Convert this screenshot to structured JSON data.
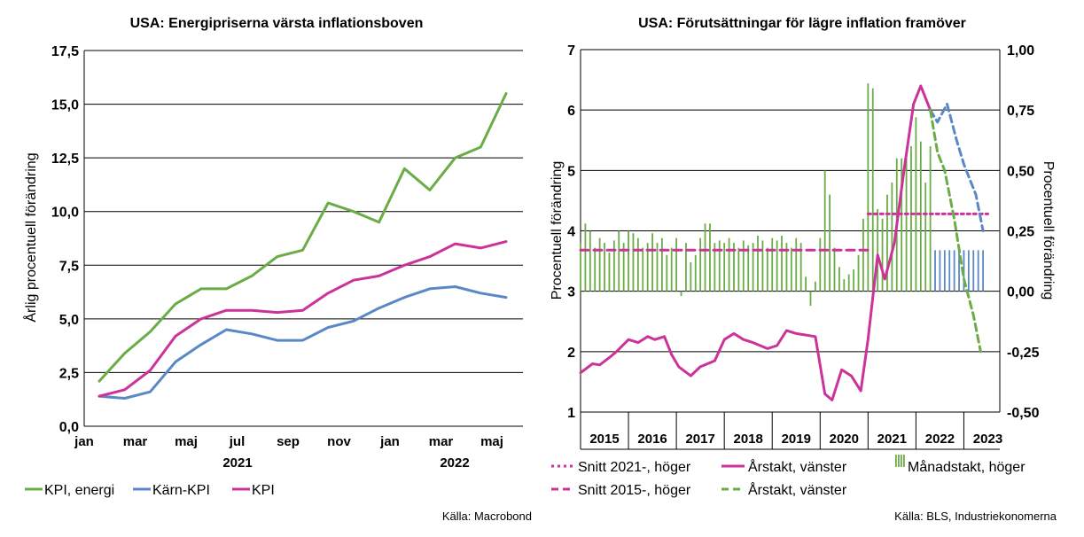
{
  "source_left": "Källa: Macrobond",
  "source_right": "Källa: BLS, Industriekonomerna",
  "chart_data": [
    {
      "type": "line",
      "title": "USA: Energipriserna värsta inflationsboven",
      "ylabel": "Årlig procentuell förändring",
      "ylim": [
        0,
        17.5
      ],
      "yticks": [
        "0,0",
        "2,5",
        "5,0",
        "7,5",
        "10,0",
        "12,5",
        "15,0",
        "17,5"
      ],
      "x_labels": [
        "jan",
        "mar",
        "maj",
        "jul",
        "sep",
        "nov",
        "jan",
        "mar",
        "maj"
      ],
      "year_labels": [
        "2021",
        "2022"
      ],
      "legend_position": "bottom-left",
      "series": [
        {
          "name": "KPI, energi",
          "color": "#6aac45",
          "values": [
            2.1,
            3.4,
            4.4,
            5.7,
            6.4,
            6.4,
            7.0,
            7.9,
            8.2,
            10.4,
            10.0,
            9.5,
            12.0,
            11.0,
            12.5,
            13.0,
            15.5
          ]
        },
        {
          "name": "Kärn-KPI",
          "color": "#5a88c6",
          "values": [
            1.4,
            1.3,
            1.6,
            3.0,
            3.8,
            4.5,
            4.3,
            4.0,
            4.0,
            4.6,
            4.9,
            5.5,
            6.0,
            6.4,
            6.5,
            6.2,
            6.0
          ]
        },
        {
          "name": "KPI",
          "color": "#cc3399",
          "values": [
            1.4,
            1.7,
            2.6,
            4.2,
            5.0,
            5.4,
            5.4,
            5.3,
            5.4,
            6.2,
            6.8,
            7.0,
            7.5,
            7.9,
            8.5,
            8.3,
            8.6
          ]
        }
      ]
    },
    {
      "type": "line",
      "title": "USA: Förutsättningar för lägre inflation framöver",
      "ylabel_left": "Procentuell förändring",
      "ylabel_right": "Procentuell förändring",
      "ylim_left": [
        1,
        7
      ],
      "ylim_right": [
        -0.5,
        1.0
      ],
      "yticks_left": [
        "1",
        "2",
        "3",
        "4",
        "5",
        "6",
        "7"
      ],
      "yticks_right": [
        "-0,50",
        "-0,25",
        "0,00",
        "0,25",
        "0,50",
        "0,75",
        "1,00"
      ],
      "years": [
        "2015",
        "2016",
        "2017",
        "2018",
        "2019",
        "2020",
        "2021",
        "2022",
        "2023"
      ],
      "legend_position": "bottom",
      "legend": [
        {
          "name": "Snitt 2021-, höger",
          "style": "dotted",
          "color": "#cc3399"
        },
        {
          "name": "Årstakt, vänster",
          "style": "solid-dashed",
          "color": "#cc3399",
          "forecast_color": "#5a88c6"
        },
        {
          "name": "Månadstakt, höger",
          "style": "bar",
          "color": "#6aac45",
          "forecast_color": "#5a88c6"
        },
        {
          "name": "Snitt 2015-, höger",
          "style": "dashed",
          "color": "#cc3399"
        },
        {
          "name": "Årstakt, vänster",
          "style": "dashed",
          "color": "#6aac45"
        }
      ],
      "snitt_2015": {
        "value": 0.17,
        "from": 2015.0,
        "to": 2021.0
      },
      "snitt_2021": {
        "value": 0.32,
        "from": 2021.0,
        "to": 2023.5
      },
      "arstakt_hist": [
        1.65,
        1.8,
        1.78,
        1.9,
        2.0,
        2.2,
        2.15,
        2.25,
        2.2,
        2.25,
        1.95,
        1.75,
        1.6,
        1.75,
        1.85,
        2.2,
        2.3,
        2.2,
        2.15,
        2.05,
        2.1,
        2.35,
        2.3,
        2.25,
        1.3,
        1.2,
        1.7,
        1.6,
        1.35,
        2.2,
        3.6,
        3.2,
        3.8,
        5.0,
        6.1,
        6.4,
        6.0
      ],
      "arstakt_hist_x": [
        2015.0,
        2015.25,
        2015.4,
        2015.6,
        2015.75,
        2016.0,
        2016.2,
        2016.4,
        2016.55,
        2016.75,
        2016.9,
        2017.05,
        2017.3,
        2017.5,
        2017.8,
        2018.0,
        2018.2,
        2018.4,
        2018.6,
        2018.9,
        2019.1,
        2019.3,
        2019.5,
        2019.9,
        2020.1,
        2020.25,
        2020.45,
        2020.65,
        2020.85,
        2021.0,
        2021.2,
        2021.35,
        2021.55,
        2021.75,
        2021.95,
        2022.1,
        2022.3
      ],
      "arstakt_blue_x": [
        2022.3,
        2022.45,
        2022.65,
        2022.85,
        2023.0,
        2023.25,
        2023.4
      ],
      "arstakt_blue": [
        6.0,
        5.8,
        6.1,
        5.5,
        5.1,
        4.6,
        4.0
      ],
      "arstakt_green_x": [
        2022.3,
        2022.45,
        2022.6,
        2022.8,
        2023.0,
        2023.2,
        2023.35
      ],
      "arstakt_green": [
        6.0,
        5.3,
        5.0,
        4.2,
        3.2,
        2.6,
        2.0
      ],
      "monthly_hist_x": [
        2015.0,
        2015.1,
        2015.2,
        2015.3,
        2015.4,
        2015.5,
        2015.6,
        2015.7,
        2015.8,
        2015.9,
        2016.0,
        2016.1,
        2016.2,
        2016.3,
        2016.4,
        2016.5,
        2016.6,
        2016.7,
        2016.8,
        2016.9,
        2017.0,
        2017.1,
        2017.2,
        2017.3,
        2017.4,
        2017.5,
        2017.6,
        2017.7,
        2017.8,
        2017.9,
        2018.0,
        2018.1,
        2018.2,
        2018.3,
        2018.4,
        2018.5,
        2018.6,
        2018.7,
        2018.8,
        2018.9,
        2019.0,
        2019.1,
        2019.2,
        2019.3,
        2019.4,
        2019.5,
        2019.6,
        2019.7,
        2019.8,
        2019.9,
        2020.0,
        2020.1,
        2020.2,
        2020.3,
        2020.4,
        2020.5,
        2020.6,
        2020.7,
        2020.8,
        2020.9,
        2021.0,
        2021.1,
        2021.2,
        2021.3,
        2021.4,
        2021.5,
        2021.6,
        2021.7,
        2021.8,
        2021.9,
        2022.0,
        2022.1,
        2022.2,
        2022.3
      ],
      "monthly_hist": [
        0.2,
        0.28,
        0.25,
        0.18,
        0.22,
        0.2,
        0.16,
        0.21,
        0.25,
        0.2,
        0.25,
        0.24,
        0.22,
        0.18,
        0.2,
        0.24,
        0.2,
        0.22,
        0.15,
        0.18,
        0.22,
        -0.02,
        0.2,
        0.12,
        0.15,
        0.22,
        0.28,
        0.28,
        0.2,
        0.21,
        0.2,
        0.22,
        0.2,
        0.18,
        0.21,
        0.19,
        0.2,
        0.23,
        0.21,
        0.18,
        0.22,
        0.21,
        0.23,
        0.2,
        0.18,
        0.22,
        0.2,
        0.06,
        -0.06,
        0.04,
        0.22,
        0.5,
        0.4,
        0.18,
        0.1,
        0.05,
        0.07,
        0.09,
        0.15,
        0.3,
        0.86,
        0.84,
        0.34,
        0.3,
        0.4,
        0.45,
        0.55,
        0.55,
        0.58,
        0.6,
        0.72,
        0.62,
        0.45,
        0.6
      ],
      "monthly_forecast_x": [
        2022.4,
        2022.5,
        2022.6,
        2022.7,
        2022.8,
        2022.9,
        2023.0,
        2023.1,
        2023.2,
        2023.3,
        2023.4
      ],
      "monthly_forecast": [
        0.17,
        0.17,
        0.17,
        0.17,
        0.17,
        0.17,
        0.17,
        0.17,
        0.17,
        0.17,
        0.17
      ]
    }
  ]
}
